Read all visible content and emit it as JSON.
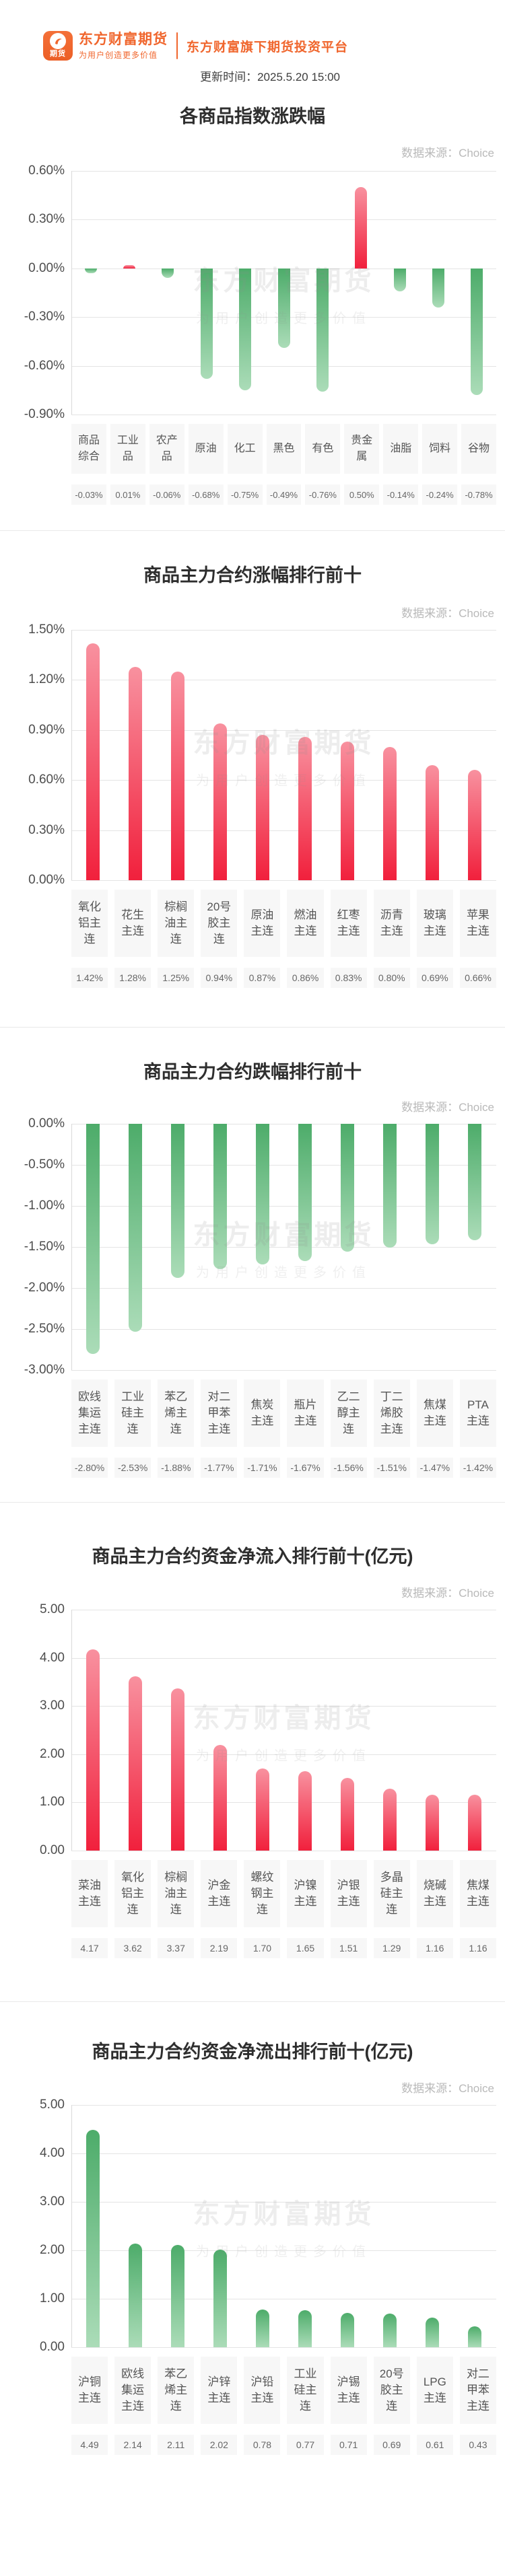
{
  "page": {
    "background": "#ffffff"
  },
  "header": {
    "logo_badge_text": "期货",
    "brand_name": "东方财富期货",
    "brand_slogan": "为用户创造更多价值",
    "platform_tagline": "东方财富旗下期货投资平台",
    "update_time": "更新时间：2025.5.20 15:00"
  },
  "watermark": {
    "line1": "东方财富期货",
    "line2": "为用户创造更多价值"
  },
  "colors": {
    "accent_orange": "#f0662d",
    "up_bar_gradient": [
      "#f8919f",
      "#f1203c"
    ],
    "down_bar_gradient": [
      "#4dac6a",
      "#abdcb8"
    ],
    "gridline": "#e4e4e4",
    "label_box_bg": "#f7f7f7"
  },
  "chart_data": [
    {
      "type": "bar",
      "title": "各商品指数涨跌幅",
      "source": "数据来源：Choice",
      "unit": "%",
      "ylim": [
        -0.9,
        0.6
      ],
      "grid": "on",
      "bar_color": "sign",
      "ytick_labels": [
        "0.60%",
        "0.30%",
        "0.00%",
        "-0.30%",
        "-0.60%",
        "-0.90%"
      ],
      "categories": [
        "商品综合",
        "工业品",
        "农产品",
        "原油",
        "化工",
        "黑色",
        "有色",
        "贵金属",
        "油脂",
        "饲料",
        "谷物"
      ],
      "values": [
        -0.03,
        0.01,
        -0.06,
        -0.68,
        -0.75,
        -0.49,
        -0.76,
        0.5,
        -0.14,
        -0.24,
        -0.78
      ],
      "value_labels": [
        "-0.03%",
        "0.01%",
        "-0.06%",
        "-0.68%",
        "-0.75%",
        "-0.49%",
        "-0.76%",
        "0.50%",
        "-0.14%",
        "-0.24%",
        "-0.78%"
      ]
    },
    {
      "type": "bar",
      "title": "商品主力合约涨幅排行前十",
      "source": "数据来源：Choice",
      "unit": "%",
      "ylim": [
        0,
        1.5
      ],
      "grid": "on",
      "bar_color": "up",
      "ytick_labels": [
        "1.50%",
        "1.20%",
        "0.90%",
        "0.60%",
        "0.30%",
        "0.00%"
      ],
      "categories": [
        "氧化铝主连",
        "花生主连",
        "棕榈油主连",
        "20号胶主连",
        "原油主连",
        "燃油主连",
        "红枣主连",
        "沥青主连",
        "玻璃主连",
        "苹果主连"
      ],
      "values": [
        1.42,
        1.28,
        1.25,
        0.94,
        0.87,
        0.86,
        0.83,
        0.8,
        0.69,
        0.66
      ],
      "value_labels": [
        "1.42%",
        "1.28%",
        "1.25%",
        "0.94%",
        "0.87%",
        "0.86%",
        "0.83%",
        "0.80%",
        "0.69%",
        "0.66%"
      ]
    },
    {
      "type": "bar",
      "title": "商品主力合约跌幅排行前十",
      "source": "数据来源：Choice",
      "unit": "%",
      "ylim": [
        -3.0,
        0
      ],
      "grid": "on",
      "bar_color": "down",
      "ytick_labels": [
        "0.00%",
        "-0.50%",
        "-1.00%",
        "-1.50%",
        "-2.00%",
        "-2.50%",
        "-3.00%"
      ],
      "categories": [
        "欧线集运主连",
        "工业硅主连",
        "苯乙烯主连",
        "对二甲苯主连",
        "焦炭主连",
        "瓶片主连",
        "乙二醇主连",
        "丁二烯胶主连",
        "焦煤主连",
        "PTA主连"
      ],
      "values": [
        -2.8,
        -2.53,
        -1.88,
        -1.77,
        -1.71,
        -1.67,
        -1.56,
        -1.51,
        -1.47,
        -1.42
      ],
      "value_labels": [
        "-2.80%",
        "-2.53%",
        "-1.88%",
        "-1.77%",
        "-1.71%",
        "-1.67%",
        "-1.56%",
        "-1.51%",
        "-1.47%",
        "-1.42%"
      ]
    },
    {
      "type": "bar",
      "title": "商品主力合约资金净流入排行前十(亿元)",
      "source": "数据来源：Choice",
      "unit": "亿元",
      "ylim": [
        0,
        5.0
      ],
      "grid": "on",
      "bar_color": "up",
      "ytick_labels": [
        "5.00",
        "4.00",
        "3.00",
        "2.00",
        "1.00",
        "0.00"
      ],
      "categories": [
        "菜油主连",
        "氧化铝主连",
        "棕榈油主连",
        "沪金主连",
        "螺纹钢主连",
        "沪镍主连",
        "沪银主连",
        "多晶硅主连",
        "烧碱主连",
        "焦煤主连"
      ],
      "values": [
        4.17,
        3.62,
        3.37,
        2.19,
        1.7,
        1.65,
        1.51,
        1.29,
        1.16,
        1.16
      ],
      "value_labels": [
        "4.17",
        "3.62",
        "3.37",
        "2.19",
        "1.70",
        "1.65",
        "1.51",
        "1.29",
        "1.16",
        "1.16"
      ]
    },
    {
      "type": "bar",
      "title": "商品主力合约资金净流出排行前十(亿元)",
      "source": "数据来源：Choice",
      "unit": "亿元",
      "ylim": [
        0,
        5.0
      ],
      "grid": "on",
      "bar_color": "down",
      "ytick_labels": [
        "5.00",
        "4.00",
        "3.00",
        "2.00",
        "1.00",
        "0.00"
      ],
      "categories": [
        "沪铜主连",
        "欧线集运主连",
        "苯乙烯主连",
        "沪锌主连",
        "沪铅主连",
        "工业硅主连",
        "沪锡主连",
        "20号胶主连",
        "LPG主连",
        "对二甲苯主连"
      ],
      "values": [
        4.49,
        2.14,
        2.11,
        2.02,
        0.78,
        0.77,
        0.71,
        0.69,
        0.61,
        0.43
      ],
      "value_labels": [
        "4.49",
        "2.14",
        "2.11",
        "2.02",
        "0.78",
        "0.77",
        "0.71",
        "0.69",
        "0.61",
        "0.43"
      ]
    }
  ]
}
